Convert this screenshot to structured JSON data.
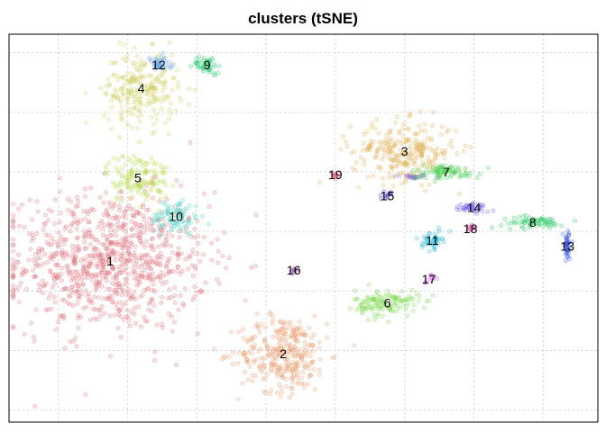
{
  "chart_data": {
    "type": "scatter",
    "title": "clusters (tSNE)",
    "xlabel": "",
    "ylabel": "",
    "xlim": [
      -37.1,
      47.9
    ],
    "ylim": [
      -32,
      33.1
    ],
    "grid": true,
    "x_grid": [
      -30,
      -20,
      -10,
      0,
      10,
      20,
      30,
      40
    ],
    "y_grid": [
      -30,
      -20,
      -10,
      0,
      10,
      20,
      30
    ],
    "clusters": [
      {
        "label": "1",
        "x": -22.5,
        "y": -5.0,
        "sx": 7.0,
        "sy": 5.8,
        "n": 900,
        "color": "#e06c75"
      },
      {
        "label": "2",
        "x": 2.5,
        "y": -20.5,
        "sx": 3.2,
        "sy": 3.2,
        "n": 320,
        "color": "#e89a6a"
      },
      {
        "label": "3",
        "x": 20.0,
        "y": 13.5,
        "sx": 3.8,
        "sy": 2.5,
        "n": 260,
        "color": "#e0b050"
      },
      {
        "label": "4",
        "x": -18.0,
        "y": 24.0,
        "sx": 2.7,
        "sy": 3.1,
        "n": 230,
        "color": "#cfcf5a"
      },
      {
        "label": "5",
        "x": -18.5,
        "y": 9.0,
        "sx": 2.3,
        "sy": 2.1,
        "n": 140,
        "color": "#b8d94a"
      },
      {
        "label": "6",
        "x": 17.5,
        "y": -12.0,
        "sx": 2.3,
        "sy": 1.1,
        "n": 130,
        "color": "#7bd64a"
      },
      {
        "label": "7",
        "x": 26.0,
        "y": 10.0,
        "sx": 2.5,
        "sy": 0.6,
        "n": 80,
        "color": "#3ccf4a"
      },
      {
        "label": "8",
        "x": 38.5,
        "y": 1.5,
        "sx": 2.2,
        "sy": 0.5,
        "n": 70,
        "color": "#22c55e"
      },
      {
        "label": "9",
        "x": -8.5,
        "y": 28.0,
        "sx": 1.0,
        "sy": 0.7,
        "n": 45,
        "color": "#18c86a"
      },
      {
        "label": "10",
        "x": -13.0,
        "y": 2.5,
        "sx": 1.8,
        "sy": 1.5,
        "n": 90,
        "color": "#4fd9c8"
      },
      {
        "label": "11",
        "x": 24.0,
        "y": -1.5,
        "sx": 0.7,
        "sy": 0.7,
        "n": 45,
        "color": "#19b8d6"
      },
      {
        "label": "12",
        "x": -15.5,
        "y": 28.0,
        "sx": 0.9,
        "sy": 0.7,
        "n": 45,
        "color": "#6aa8e8"
      },
      {
        "label": "13",
        "x": 43.5,
        "y": -2.5,
        "sx": 0.3,
        "sy": 1.3,
        "n": 40,
        "color": "#3050e0"
      },
      {
        "label": "14",
        "x": 30.0,
        "y": 4.0,
        "sx": 1.1,
        "sy": 0.4,
        "n": 40,
        "color": "#6a5ae8"
      },
      {
        "label": "15",
        "x": 17.5,
        "y": 6.0,
        "sx": 0.3,
        "sy": 0.3,
        "n": 12,
        "color": "#4338ca"
      },
      {
        "label": "16",
        "x": 4.0,
        "y": -6.5,
        "sx": 0.3,
        "sy": 0.3,
        "n": 10,
        "color": "#9b59b6"
      },
      {
        "label": "17",
        "x": 23.5,
        "y": -8.0,
        "sx": 0.4,
        "sy": 0.4,
        "n": 10,
        "color": "#d946ef"
      },
      {
        "label": "18",
        "x": 29.5,
        "y": 0.5,
        "sx": 0.4,
        "sy": 0.3,
        "n": 10,
        "color": "#e0409a"
      },
      {
        "label": "19",
        "x": 10.0,
        "y": 9.5,
        "sx": 0.4,
        "sy": 0.3,
        "n": 10,
        "color": "#f0507a"
      }
    ],
    "extra_points": [
      {
        "x": 21.0,
        "y": 9.2,
        "sx": 1.3,
        "sy": 0.2,
        "n": 25,
        "color": "#8a6ae0"
      }
    ]
  }
}
